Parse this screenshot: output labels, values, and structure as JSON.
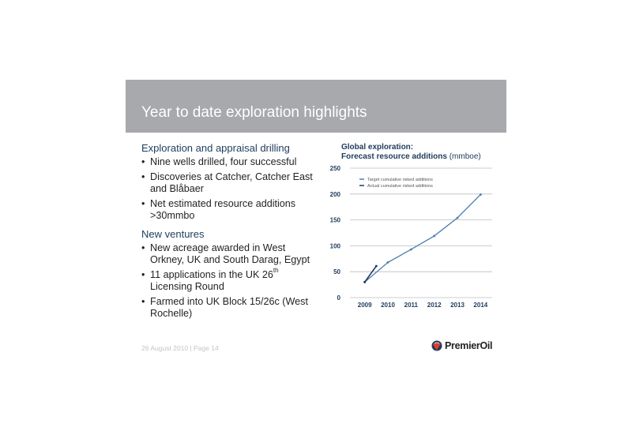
{
  "slide": {
    "title": "Year to date exploration highlights",
    "section1": {
      "heading": "Exploration and appraisal drilling",
      "bullets": [
        "Nine wells drilled, four successful",
        "Discoveries at Catcher, Catcher East and Blåbaer",
        "Net estimated resource additions >30mmbo"
      ]
    },
    "section2": {
      "heading": "New ventures",
      "bullet1": "New acreage awarded in West Orkney, UK and South Darag, Egypt",
      "bullet2_pre": "11 applications in the UK 26",
      "bullet2_sup": "th",
      "bullet2_post": " Licensing Round",
      "bullet3": "Farmed into UK Block 15/26c (West Rochelle)"
    },
    "footer": "26 August 2010 | Page 14",
    "logo_text": "PremierOil"
  },
  "chart_data": {
    "type": "line",
    "title_line1": "Global exploration:",
    "title_line2": "Forecast  resource additions",
    "title_unit": "(mmboe)",
    "x_ticks": [
      "2009",
      "2010",
      "2011",
      "2012",
      "2013",
      "2014"
    ],
    "y_ticks": [
      0,
      50,
      100,
      150,
      200,
      250
    ],
    "ylim": [
      0,
      250
    ],
    "grid": true,
    "legend_position": "top-left",
    "series": [
      {
        "name": "Target cumulative risked additions",
        "color": "#4a7db0",
        "x": [
          2009,
          2010,
          2011,
          2012,
          2013,
          2014
        ],
        "y": [
          30,
          68,
          93,
          119,
          154,
          199
        ]
      },
      {
        "name": "Actual cumulative risked additions",
        "color": "#1f3b5c",
        "x": [
          2009,
          2009.5
        ],
        "y": [
          30,
          61
        ]
      }
    ]
  }
}
